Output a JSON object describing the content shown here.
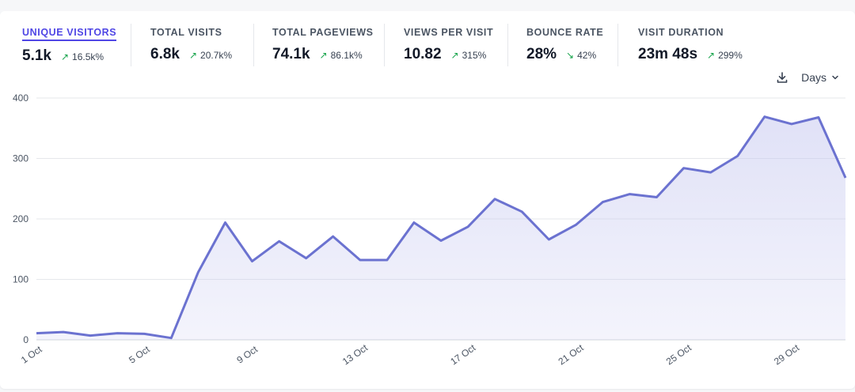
{
  "metrics": [
    {
      "label": "UNIQUE VISITORS",
      "value": "5.1k",
      "change": "16.5k%",
      "direction": "up",
      "active": true
    },
    {
      "label": "TOTAL VISITS",
      "value": "6.8k",
      "change": "20.7k%",
      "direction": "up",
      "active": false
    },
    {
      "label": "TOTAL PAGEVIEWS",
      "value": "74.1k",
      "change": "86.1k%",
      "direction": "up",
      "active": false
    },
    {
      "label": "VIEWS PER VISIT",
      "value": "10.82",
      "change": "315%",
      "direction": "up",
      "active": false
    },
    {
      "label": "BOUNCE RATE",
      "value": "28%",
      "change": "42%",
      "direction": "down",
      "active": false
    },
    {
      "label": "VISIT DURATION",
      "value": "23m 48s",
      "change": "299%",
      "direction": "up",
      "active": false
    }
  ],
  "toolbar": {
    "period_label": "Days",
    "download_icon": "download-icon",
    "chevron_icon": "chevron-down-icon"
  },
  "colors": {
    "line": "#6b72d0",
    "fill_top": "#c7c9f0",
    "fill_bottom": "#ffffff",
    "grid": "#e5e7eb",
    "accent": "#4f46e5",
    "positive": "#16a34a"
  },
  "chart_data": {
    "type": "area",
    "title": "",
    "xlabel": "",
    "ylabel": "",
    "series": [
      {
        "name": "Unique visitors",
        "x": [
          "1 Oct",
          "2 Oct",
          "3 Oct",
          "4 Oct",
          "5 Oct",
          "6 Oct",
          "7 Oct",
          "8 Oct",
          "9 Oct",
          "10 Oct",
          "11 Oct",
          "12 Oct",
          "13 Oct",
          "14 Oct",
          "15 Oct",
          "16 Oct",
          "17 Oct",
          "18 Oct",
          "19 Oct",
          "20 Oct",
          "21 Oct",
          "22 Oct",
          "23 Oct",
          "24 Oct",
          "25 Oct",
          "26 Oct",
          "27 Oct",
          "28 Oct",
          "29 Oct",
          "30 Oct",
          "31 Oct"
        ],
        "values": [
          11,
          13,
          7,
          11,
          10,
          3,
          112,
          194,
          130,
          163,
          135,
          171,
          132,
          132,
          194,
          164,
          187,
          233,
          212,
          166,
          190,
          228,
          241,
          236,
          284,
          277,
          304,
          369,
          357,
          368,
          268
        ]
      }
    ],
    "ylim": [
      0,
      400
    ],
    "yticks": [
      0,
      100,
      200,
      300,
      400
    ],
    "xtick_labels": [
      "1 Oct",
      "5 Oct",
      "9 Oct",
      "13 Oct",
      "17 Oct",
      "21 Oct",
      "25 Oct",
      "29 Oct"
    ],
    "grid": true
  }
}
